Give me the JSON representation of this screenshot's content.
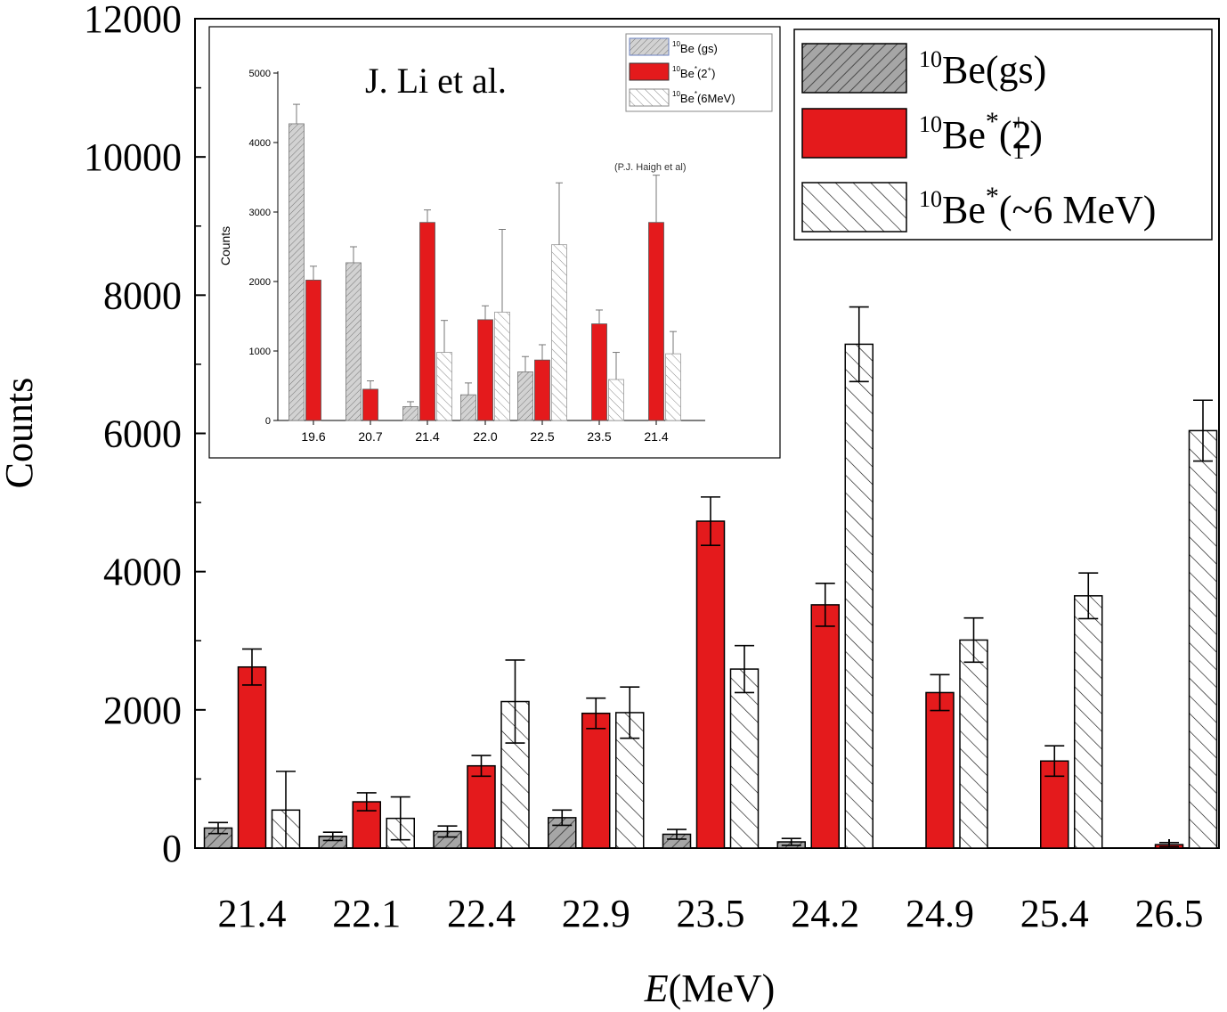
{
  "chart_data": [
    {
      "type": "bar",
      "xlabel_italic": "E",
      "xlabel_rest": "(MeV)",
      "ylabel": "Counts",
      "ylim": [
        0,
        12000
      ],
      "yticks": [
        0,
        2000,
        4000,
        6000,
        8000,
        10000,
        12000
      ],
      "yticklabels": [
        "0",
        "2000",
        "4000",
        "6000",
        "8000",
        "10000",
        "12000"
      ],
      "categories": [
        "21.4",
        "22.1",
        "22.4",
        "22.9",
        "23.5",
        "24.2",
        "24.9",
        "25.4",
        "26.5"
      ],
      "legend_position": "top-right",
      "series": [
        {
          "name_sup": "10",
          "name_main": "Be(gs)",
          "fill": "gray-hatched",
          "color": "#9a9a9a",
          "values": [
            290,
            170,
            240,
            440,
            200,
            90,
            null,
            null,
            null
          ],
          "errors": [
            80,
            60,
            80,
            110,
            70,
            50,
            null,
            null,
            null
          ]
        },
        {
          "name_sup": "10",
          "name_main": "Be",
          "name_star": "*",
          "name_paren_open": "(2",
          "name_sub": "1",
          "name_supplus": "+",
          "name_paren_close": ")",
          "fill": "solid",
          "color": "#e41a1c",
          "values": [
            2620,
            670,
            1190,
            1950,
            4730,
            3520,
            2250,
            1260,
            50
          ],
          "errors": [
            260,
            130,
            150,
            220,
            350,
            310,
            260,
            220,
            30
          ]
        },
        {
          "name_sup": "10",
          "name_main": "Be",
          "name_star": "*",
          "name_rest": "(~6 MeV)",
          "fill": "diagonal-hatched",
          "color": "#ffffff",
          "values": [
            550,
            430,
            2120,
            1960,
            2590,
            7290,
            3010,
            3650,
            6040
          ],
          "errors": [
            560,
            310,
            600,
            370,
            340,
            540,
            320,
            330,
            440
          ]
        }
      ]
    },
    {
      "type": "bar",
      "inset": true,
      "annotation": "J. Li et al.",
      "annotation2": "(P.J. Haigh et al)",
      "ylabel": "Counts",
      "ylim": [
        0,
        5000
      ],
      "yticks": [
        0,
        1000,
        2000,
        3000,
        4000,
        5000
      ],
      "yticklabels": [
        "0",
        "1000",
        "2000",
        "3000",
        "4000",
        "5000"
      ],
      "categories": [
        "19.6",
        "20.7",
        "21.4",
        "22.0",
        "22.5",
        "23.5",
        "21.4"
      ],
      "legend_position": "top-right",
      "series": [
        {
          "name_sup": "10",
          "name_main": "Be (gs)",
          "values": [
            4270,
            2270,
            200,
            370,
            700,
            null,
            null
          ],
          "errors": [
            280,
            230,
            70,
            170,
            220,
            null,
            null
          ]
        },
        {
          "name_sup": "10",
          "name_main": "Be",
          "name_star": "*",
          "name_rest": "(2",
          "name_supplus": "+",
          "name_close": ")",
          "values": [
            2020,
            450,
            2850,
            1450,
            870,
            1390,
            2850
          ],
          "errors": [
            200,
            120,
            180,
            200,
            220,
            200,
            680
          ]
        },
        {
          "name_sup": "10",
          "name_main": "Be",
          "name_star": "*",
          "name_rest": "(6MeV)",
          "values": [
            null,
            null,
            980,
            1560,
            2530,
            590,
            960
          ],
          "errors": [
            null,
            null,
            460,
            1190,
            890,
            390,
            320
          ]
        }
      ]
    }
  ]
}
